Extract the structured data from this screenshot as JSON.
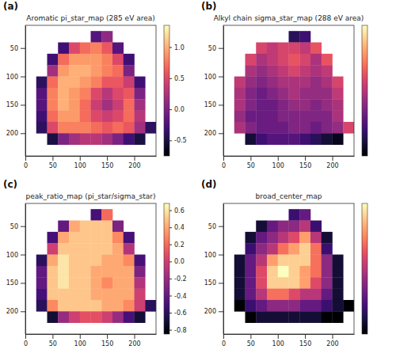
{
  "chart_data": [
    {
      "type": "heatmap",
      "label": "(a)",
      "title": "Aromatic pi_star_map (285 eV area)",
      "color": "magma",
      "x": [
        10,
        30,
        50,
        70,
        90,
        110,
        130,
        150,
        170,
        190,
        210,
        230
      ],
      "y": [
        10,
        30,
        50,
        70,
        90,
        110,
        130,
        150,
        170,
        190,
        210,
        230
      ],
      "xlim": [
        0,
        240
      ],
      "ylim": [
        240,
        10
      ],
      "xticks": [
        0,
        50,
        100,
        150,
        200
      ],
      "yticks": [
        50,
        100,
        150,
        200
      ],
      "cells": [
        [
          null,
          null,
          null,
          null,
          null,
          null,
          null,
          null,
          null,
          null,
          null,
          null
        ],
        [
          null,
          null,
          null,
          null,
          null,
          null,
          -0.2,
          0.1,
          null,
          null,
          null,
          null
        ],
        [
          null,
          null,
          null,
          -0.3,
          0.5,
          0.7,
          0.8,
          0.6,
          -0.2,
          null,
          null,
          null
        ],
        [
          null,
          null,
          -0.3,
          0.7,
          0.9,
          0.9,
          0.9,
          0.8,
          0.5,
          -0.3,
          null,
          null
        ],
        [
          null,
          null,
          0.2,
          0.9,
          1.0,
          1.0,
          0.9,
          0.8,
          0.7,
          0.0,
          null,
          null
        ],
        [
          null,
          -0.4,
          0.7,
          1.0,
          1.0,
          0.9,
          0.8,
          0.6,
          0.6,
          0.4,
          -0.3,
          null
        ],
        [
          null,
          -0.2,
          0.8,
          1.0,
          0.9,
          0.8,
          0.5,
          0.3,
          0.5,
          0.6,
          0.0,
          null
        ],
        [
          null,
          -0.2,
          0.8,
          1.0,
          0.9,
          0.7,
          0.4,
          0.2,
          0.4,
          0.7,
          0.2,
          null
        ],
        [
          null,
          -0.3,
          0.7,
          0.9,
          0.9,
          0.7,
          0.5,
          0.4,
          0.5,
          0.7,
          0.3,
          null
        ],
        [
          null,
          -0.4,
          0.5,
          0.8,
          0.8,
          0.8,
          0.7,
          0.6,
          0.7,
          0.6,
          0.2,
          -0.4
        ],
        [
          null,
          null,
          -0.5,
          0.0,
          0.2,
          0.3,
          0.3,
          0.2,
          0.0,
          -0.3,
          -0.5,
          null
        ],
        [
          null,
          null,
          null,
          null,
          null,
          null,
          null,
          null,
          null,
          null,
          null,
          null
        ]
      ],
      "colorbar": {
        "range": [
          -0.75,
          1.35
        ],
        "ticks": [
          {
            "value": -0.5,
            "label": "-0.5"
          },
          {
            "value": 0,
            "label": "0.0"
          },
          {
            "value": 0.5,
            "label": "0.5"
          },
          {
            "value": 1,
            "label": "1.0"
          }
        ]
      }
    },
    {
      "type": "heatmap",
      "label": "(b)",
      "title": "Alkyl chain sigma_star_map (288 eV area)",
      "color": "magma",
      "x": [
        10,
        30,
        50,
        70,
        90,
        110,
        130,
        150,
        170,
        190,
        210,
        230
      ],
      "y": [
        10,
        30,
        50,
        70,
        90,
        110,
        130,
        150,
        170,
        190,
        210,
        230
      ],
      "xlim": [
        0,
        240
      ],
      "ylim": [
        240,
        10
      ],
      "xticks": [
        0,
        50,
        100,
        150,
        200
      ],
      "yticks": [
        50,
        100,
        150,
        200
      ],
      "cells": [
        [
          null,
          null,
          null,
          null,
          null,
          null,
          null,
          null,
          null,
          null,
          null,
          null
        ],
        [
          null,
          null,
          null,
          null,
          null,
          null,
          -0.3,
          -0.2,
          null,
          null,
          null,
          null
        ],
        [
          null,
          null,
          null,
          0.5,
          0.4,
          0.5,
          0.5,
          0.4,
          0.6,
          null,
          null,
          null
        ],
        [
          null,
          null,
          0.5,
          0.3,
          0.4,
          0.5,
          0.6,
          0.5,
          0.3,
          0.6,
          null,
          null
        ],
        [
          null,
          null,
          0.3,
          0.2,
          0.3,
          0.4,
          0.5,
          0.4,
          0.3,
          0.4,
          null,
          null
        ],
        [
          null,
          0.4,
          0.2,
          0.1,
          0.2,
          0.3,
          0.3,
          0.3,
          0.2,
          0.3,
          0.5,
          null
        ],
        [
          null,
          0.3,
          0.1,
          0.0,
          0.1,
          0.2,
          0.3,
          0.2,
          0.2,
          0.2,
          0.4,
          null
        ],
        [
          null,
          0.3,
          0.1,
          0.0,
          0.0,
          0.1,
          0.2,
          0.2,
          0.1,
          0.2,
          0.3,
          null
        ],
        [
          null,
          0.2,
          0.0,
          0.0,
          0.0,
          0.1,
          0.1,
          0.1,
          0.1,
          0.1,
          0.3,
          null
        ],
        [
          null,
          0.3,
          0.1,
          0.0,
          0.0,
          0.0,
          0.1,
          0.1,
          0.0,
          0.1,
          0.2,
          0.5
        ],
        [
          null,
          null,
          -0.4,
          -0.2,
          -0.1,
          -0.1,
          -0.1,
          -0.2,
          -0.3,
          -0.4,
          -0.5,
          null
        ],
        [
          null,
          null,
          null,
          null,
          null,
          null,
          null,
          null,
          null,
          null,
          null,
          null
        ]
      ],
      "colorbar": {
        "range": [
          -0.6,
          1.3
        ]
      }
    },
    {
      "type": "heatmap",
      "label": "(c)",
      "title": "peak_ratio_map (pi_star/sigma_star)",
      "color": "magma",
      "x": [
        10,
        30,
        50,
        70,
        90,
        110,
        130,
        150,
        170,
        190,
        210,
        230
      ],
      "y": [
        10,
        30,
        50,
        70,
        90,
        110,
        130,
        150,
        170,
        190,
        210,
        230
      ],
      "xlim": [
        0,
        240
      ],
      "ylim": [
        240,
        10
      ],
      "xticks": [
        0,
        50,
        100,
        150,
        200
      ],
      "yticks": [
        50,
        100,
        150,
        200
      ],
      "cells": [
        [
          null,
          null,
          null,
          null,
          null,
          null,
          null,
          null,
          null,
          null,
          null,
          null
        ],
        [
          null,
          null,
          null,
          null,
          null,
          null,
          -0.5,
          0.2,
          null,
          null,
          null,
          null
        ],
        [
          null,
          null,
          null,
          -0.4,
          0.4,
          0.5,
          0.5,
          0.5,
          -0.3,
          null,
          null,
          null
        ],
        [
          null,
          null,
          -0.5,
          0.4,
          0.5,
          0.5,
          0.5,
          0.5,
          0.3,
          -0.5,
          null,
          null
        ],
        [
          null,
          null,
          0.0,
          0.5,
          0.5,
          0.5,
          0.5,
          0.5,
          0.4,
          -0.1,
          null,
          null
        ],
        [
          null,
          -0.6,
          0.4,
          0.6,
          0.5,
          0.5,
          0.5,
          0.4,
          0.4,
          0.3,
          -0.5,
          null
        ],
        [
          null,
          -0.4,
          0.5,
          0.6,
          0.5,
          0.5,
          0.4,
          0.4,
          0.4,
          0.4,
          -0.3,
          null
        ],
        [
          null,
          -0.4,
          0.5,
          0.6,
          0.5,
          0.5,
          0.4,
          0.3,
          0.4,
          0.4,
          -0.1,
          null
        ],
        [
          null,
          -0.5,
          0.5,
          0.5,
          0.5,
          0.5,
          0.4,
          0.4,
          0.4,
          0.4,
          0.0,
          null
        ],
        [
          null,
          -0.6,
          0.3,
          0.5,
          0.5,
          0.5,
          0.5,
          0.4,
          0.4,
          0.3,
          0.0,
          -0.6
        ],
        [
          null,
          null,
          -0.7,
          -0.2,
          0.0,
          0.1,
          0.1,
          0.0,
          -0.2,
          -0.5,
          -0.7,
          null
        ],
        [
          null,
          null,
          null,
          null,
          null,
          null,
          null,
          null,
          null,
          null,
          null,
          null
        ]
      ],
      "colorbar": {
        "range": [
          -0.85,
          0.68
        ],
        "ticks": [
          {
            "value": -0.8,
            "label": "-0.8"
          },
          {
            "value": -0.6,
            "label": "-0.6"
          },
          {
            "value": -0.4,
            "label": "-0.4"
          },
          {
            "value": -0.2,
            "label": "-0.2"
          },
          {
            "value": 0,
            "label": "0.0"
          },
          {
            "value": 0.2,
            "label": "0.2"
          },
          {
            "value": 0.4,
            "label": "0.4"
          },
          {
            "value": 0.6,
            "label": "0.6"
          }
        ]
      }
    },
    {
      "type": "heatmap",
      "label": "(d)",
      "title": "broad_center_map",
      "color": "magma",
      "x": [
        10,
        30,
        50,
        70,
        90,
        110,
        130,
        150,
        170,
        190,
        210,
        230
      ],
      "y": [
        10,
        30,
        50,
        70,
        90,
        110,
        130,
        150,
        170,
        190,
        210,
        230
      ],
      "xlim": [
        0,
        240
      ],
      "ylim": [
        240,
        10
      ],
      "xticks": [
        0,
        50,
        100,
        150,
        200
      ],
      "yticks": [
        50,
        100,
        150,
        200
      ],
      "cells": [
        [
          null,
          null,
          null,
          null,
          null,
          null,
          null,
          null,
          null,
          null,
          null,
          null
        ],
        [
          null,
          null,
          null,
          null,
          null,
          null,
          0.2,
          0.3,
          null,
          null,
          null,
          null
        ],
        [
          null,
          null,
          null,
          0.1,
          0.3,
          0.4,
          0.4,
          0.5,
          0.2,
          null,
          null,
          null
        ],
        [
          null,
          null,
          0.1,
          0.3,
          0.4,
          0.5,
          0.6,
          0.8,
          0.5,
          0.1,
          null,
          null
        ],
        [
          null,
          null,
          0.2,
          0.4,
          0.5,
          0.7,
          0.8,
          0.9,
          0.7,
          0.2,
          null,
          null
        ],
        [
          null,
          0.1,
          0.3,
          0.5,
          0.8,
          0.9,
          0.9,
          0.9,
          0.7,
          0.4,
          0.1,
          null
        ],
        [
          null,
          0.1,
          0.3,
          0.6,
          0.9,
          1.0,
          0.9,
          0.8,
          0.7,
          0.4,
          0.1,
          null
        ],
        [
          null,
          0.1,
          0.3,
          0.6,
          0.9,
          0.9,
          0.9,
          0.8,
          0.6,
          0.4,
          0.1,
          null
        ],
        [
          null,
          0.1,
          0.3,
          0.5,
          0.7,
          0.7,
          0.6,
          0.5,
          0.5,
          0.3,
          0.1,
          null
        ],
        [
          null,
          0.0,
          0.2,
          0.3,
          0.4,
          0.4,
          0.4,
          0.3,
          0.3,
          0.2,
          0.1,
          0.0
        ],
        [
          null,
          null,
          0.0,
          0.1,
          0.1,
          0.1,
          0.1,
          0.1,
          0.1,
          0.0,
          0.0,
          null
        ],
        [
          null,
          null,
          null,
          null,
          null,
          null,
          null,
          null,
          null,
          null,
          null,
          null
        ]
      ],
      "colorbar": {
        "range": [
          0,
          1
        ]
      }
    }
  ]
}
